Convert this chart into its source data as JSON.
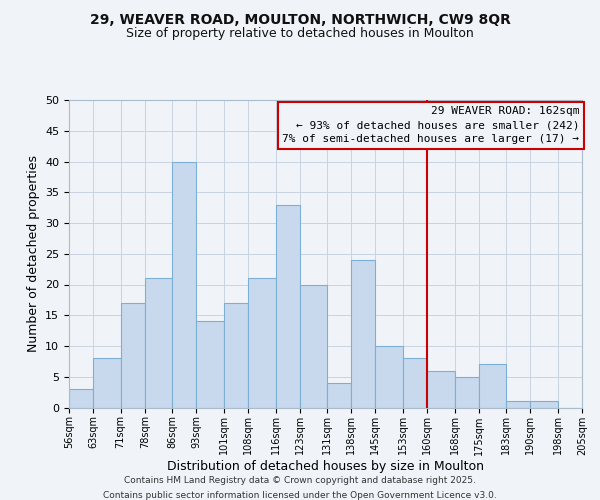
{
  "title1": "29, WEAVER ROAD, MOULTON, NORTHWICH, CW9 8QR",
  "title2": "Size of property relative to detached houses in Moulton",
  "xlabel": "Distribution of detached houses by size in Moulton",
  "ylabel": "Number of detached properties",
  "bar_left_edges": [
    56,
    63,
    71,
    78,
    86,
    93,
    101,
    108,
    116,
    123,
    131,
    138,
    145,
    153,
    160,
    168,
    175,
    183,
    190,
    198
  ],
  "bar_widths": [
    7,
    8,
    7,
    8,
    7,
    8,
    7,
    8,
    7,
    8,
    7,
    7,
    8,
    7,
    8,
    7,
    8,
    7,
    8,
    7
  ],
  "bar_heights": [
    3,
    8,
    17,
    21,
    40,
    14,
    17,
    21,
    33,
    20,
    4,
    24,
    10,
    8,
    6,
    5,
    7,
    1,
    1,
    0
  ],
  "bar_color": "#c8d9ee",
  "bar_edgecolor": "#7bafd4",
  "grid_color": "#c8d4e0",
  "vline_x": 160,
  "vline_color": "#cc0000",
  "ylim": [
    0,
    50
  ],
  "yticks": [
    0,
    5,
    10,
    15,
    20,
    25,
    30,
    35,
    40,
    45,
    50
  ],
  "xtick_labels": [
    "56sqm",
    "63sqm",
    "71sqm",
    "78sqm",
    "86sqm",
    "93sqm",
    "101sqm",
    "108sqm",
    "116sqm",
    "123sqm",
    "131sqm",
    "138sqm",
    "145sqm",
    "153sqm",
    "160sqm",
    "168sqm",
    "175sqm",
    "183sqm",
    "190sqm",
    "198sqm",
    "205sqm"
  ],
  "annotation_box_title": "29 WEAVER ROAD: 162sqm",
  "annotation_line1": "← 93% of detached houses are smaller (242)",
  "annotation_line2": "7% of semi-detached houses are larger (17) →",
  "annotation_box_edgecolor": "#cc0000",
  "footnote1": "Contains HM Land Registry data © Crown copyright and database right 2025.",
  "footnote2": "Contains public sector information licensed under the Open Government Licence v3.0.",
  "bg_color": "#f0f4f8"
}
